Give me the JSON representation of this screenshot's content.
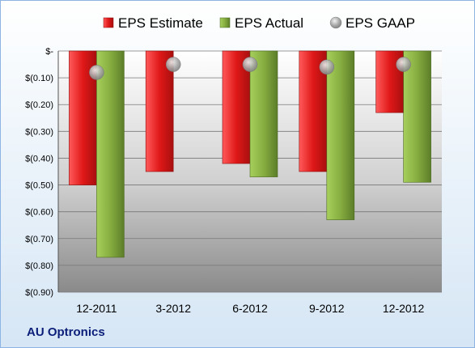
{
  "company": "AU Optronics",
  "chart_data": {
    "type": "bar",
    "categories": [
      "12-2011",
      "3-2012",
      "6-2012",
      "9-2012",
      "12-2012"
    ],
    "series": [
      {
        "name": "EPS Estimate",
        "type": "bar",
        "color": "#d21f1f",
        "values": [
          -0.5,
          -0.45,
          -0.42,
          -0.45,
          -0.23
        ]
      },
      {
        "name": "EPS Actual",
        "type": "bar",
        "color": "#7ba03a",
        "values": [
          -0.77,
          null,
          -0.47,
          -0.63,
          -0.49
        ]
      },
      {
        "name": "EPS GAAP",
        "type": "marker",
        "color": "#9aa0a6",
        "values": [
          -0.08,
          -0.05,
          -0.05,
          -0.06,
          -0.05
        ]
      }
    ],
    "ylim": [
      -0.9,
      0
    ],
    "yticks": [
      0,
      -0.1,
      -0.2,
      -0.3,
      -0.4,
      -0.5,
      -0.6,
      -0.7,
      -0.8,
      -0.9
    ],
    "ytick_labels": [
      "$-",
      "$(0.10)",
      "$(0.20)",
      "$(0.30)",
      "$(0.40)",
      "$(0.50)",
      "$(0.60)",
      "$(0.70)",
      "$(0.80)",
      "$(0.90)"
    ],
    "grid": true,
    "legend": "top"
  }
}
